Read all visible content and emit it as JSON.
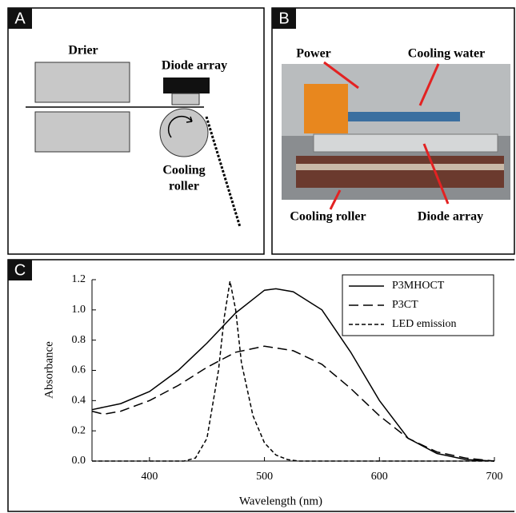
{
  "panels": {
    "a": {
      "label": "A",
      "drier": "Drier",
      "diode": "Diode array",
      "roller_1": "Cooling",
      "roller_2": "roller"
    },
    "b": {
      "label": "B",
      "power": "Power",
      "water": "Cooling water",
      "roller": "Cooling roller",
      "diode": "Diode array"
    },
    "c": {
      "label": "C"
    }
  },
  "chart_data": {
    "type": "line",
    "x_label": "Wavelength (nm)",
    "y_label": "Absorbance",
    "xlim": [
      350,
      700
    ],
    "xticks": [
      400,
      500,
      600,
      700
    ],
    "ylim": [
      0,
      1.2
    ],
    "yticks": [
      {
        "value": 0,
        "label": "0.0"
      },
      0.2,
      0.4,
      0.6,
      0.8,
      {
        "value": 1,
        "label": "1.0"
      },
      1.2
    ],
    "series": [
      {
        "name": "P3MHOCT",
        "color": "#000000",
        "dash": "solid",
        "x": [
          350,
          375,
          400,
          425,
          450,
          475,
          500,
          510,
          525,
          550,
          575,
          600,
          625,
          650,
          675,
          700
        ],
        "values": [
          0.34,
          0.38,
          0.46,
          0.6,
          0.78,
          0.98,
          1.13,
          1.14,
          1.12,
          1.0,
          0.72,
          0.4,
          0.15,
          0.05,
          0.01,
          0
        ]
      },
      {
        "name": "P3CT",
        "color": "#000000",
        "dash": "long",
        "x": [
          350,
          360,
          375,
          400,
          425,
          450,
          475,
          500,
          525,
          550,
          575,
          600,
          625,
          650,
          675,
          700
        ],
        "values": [
          0.33,
          0.31,
          0.33,
          0.4,
          0.5,
          0.62,
          0.72,
          0.76,
          0.73,
          0.64,
          0.48,
          0.3,
          0.15,
          0.06,
          0.02,
          0
        ]
      },
      {
        "name": "LED emission",
        "color": "#000000",
        "dash": "short",
        "x": [
          350,
          430,
          440,
          450,
          460,
          465,
          470,
          475,
          480,
          490,
          500,
          510,
          520,
          530,
          700
        ],
        "values": [
          0,
          0,
          0.02,
          0.15,
          0.6,
          0.95,
          1.19,
          1.0,
          0.65,
          0.3,
          0.12,
          0.04,
          0.01,
          0,
          0
        ]
      }
    ]
  }
}
